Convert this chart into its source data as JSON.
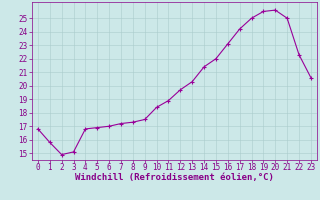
{
  "x": [
    0,
    1,
    2,
    3,
    4,
    5,
    6,
    7,
    8,
    9,
    10,
    11,
    12,
    13,
    14,
    15,
    16,
    17,
    18,
    19,
    20,
    21,
    22,
    23
  ],
  "y": [
    16.8,
    15.8,
    14.9,
    15.1,
    16.8,
    16.9,
    17.0,
    17.2,
    17.3,
    17.5,
    18.4,
    18.9,
    19.7,
    20.3,
    21.4,
    22.0,
    23.1,
    24.2,
    25.0,
    25.5,
    25.6,
    25.0,
    22.3,
    20.6
  ],
  "line_color": "#990099",
  "marker": "+",
  "marker_size": 3,
  "xlabel": "Windchill (Refroidissement éolien,°C)",
  "xlim": [
    -0.5,
    23.5
  ],
  "ylim": [
    14.5,
    26.2
  ],
  "yticks": [
    15,
    16,
    17,
    18,
    19,
    20,
    21,
    22,
    23,
    24,
    25
  ],
  "xticks": [
    0,
    1,
    2,
    3,
    4,
    5,
    6,
    7,
    8,
    9,
    10,
    11,
    12,
    13,
    14,
    15,
    16,
    17,
    18,
    19,
    20,
    21,
    22,
    23
  ],
  "bg_color": "#cce8e8",
  "grid_color": "#aacccc",
  "text_color": "#880088",
  "xlabel_fontsize": 6.5,
  "tick_fontsize": 5.5,
  "line_width": 0.8
}
